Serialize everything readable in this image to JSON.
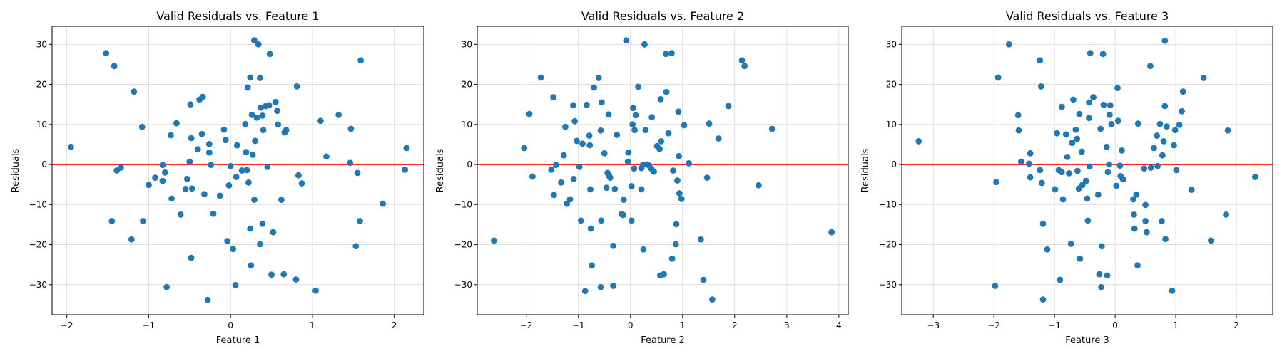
{
  "chart_data": [
    {
      "type": "scatter",
      "title": "Valid Residuals vs. Feature 1",
      "xlabel": "Feature 1",
      "ylabel": "Residuals",
      "xlim": [
        -2.18,
        2.36
      ],
      "ylim": [
        -37.5,
        34.5
      ],
      "xticks": [
        -2,
        -1,
        0,
        1,
        2
      ],
      "yticks": [
        -30,
        -20,
        -10,
        0,
        10,
        20,
        30
      ],
      "grid": true,
      "reference_line": {
        "y": 0,
        "color": "#ff0000"
      },
      "marker_color": "#1f77b4",
      "points": [
        [
          -1.95,
          4.4
        ],
        [
          -1.52,
          27.8
        ],
        [
          -1.42,
          24.6
        ],
        [
          -1.45,
          -14.1
        ],
        [
          -1.39,
          -1.5
        ],
        [
          -1.34,
          -0.8
        ],
        [
          -1.21,
          -18.7
        ],
        [
          -1.18,
          18.2
        ],
        [
          -1.08,
          9.4
        ],
        [
          -1.07,
          -14.1
        ],
        [
          -1.0,
          -5.1
        ],
        [
          -0.92,
          -3.3
        ],
        [
          -0.83,
          -0.1
        ],
        [
          -0.83,
          -4.1
        ],
        [
          -0.8,
          -2.0
        ],
        [
          -0.78,
          -30.6
        ],
        [
          -0.73,
          7.3
        ],
        [
          -0.72,
          -8.5
        ],
        [
          -0.66,
          10.3
        ],
        [
          -0.61,
          -12.5
        ],
        [
          -0.55,
          -6.1
        ],
        [
          -0.53,
          -3.6
        ],
        [
          -0.5,
          0.7
        ],
        [
          -0.49,
          15.0
        ],
        [
          -0.48,
          6.6
        ],
        [
          -0.48,
          -23.3
        ],
        [
          -0.47,
          -6.0
        ],
        [
          -0.4,
          3.8
        ],
        [
          -0.38,
          16.2
        ],
        [
          -0.35,
          7.6
        ],
        [
          -0.34,
          16.9
        ],
        [
          -0.32,
          -7.4
        ],
        [
          -0.28,
          -33.8
        ],
        [
          -0.26,
          5.1
        ],
        [
          -0.26,
          3.0
        ],
        [
          -0.24,
          -0.1
        ],
        [
          -0.21,
          -12.3
        ],
        [
          -0.13,
          -7.8
        ],
        [
          -0.08,
          8.7
        ],
        [
          -0.06,
          6.1
        ],
        [
          -0.04,
          -19.1
        ],
        [
          -0.02,
          -5.2
        ],
        [
          0.0,
          -0.4
        ],
        [
          0.03,
          -21.1
        ],
        [
          0.06,
          -30.1
        ],
        [
          0.07,
          -3.1
        ],
        [
          0.08,
          4.8
        ],
        [
          0.14,
          -1.5
        ],
        [
          0.18,
          10.1
        ],
        [
          0.19,
          3.1
        ],
        [
          0.2,
          -1.4
        ],
        [
          0.21,
          19.2
        ],
        [
          0.22,
          -4.5
        ],
        [
          0.24,
          21.7
        ],
        [
          0.24,
          -16.0
        ],
        [
          0.25,
          -25.2
        ],
        [
          0.26,
          12.4
        ],
        [
          0.27,
          2.4
        ],
        [
          0.29,
          31.0
        ],
        [
          0.29,
          -8.8
        ],
        [
          0.3,
          5.9
        ],
        [
          0.32,
          11.7
        ],
        [
          0.34,
          30.0
        ],
        [
          0.36,
          21.6
        ],
        [
          0.36,
          -19.9
        ],
        [
          0.37,
          14.2
        ],
        [
          0.39,
          12.2
        ],
        [
          0.39,
          -14.8
        ],
        [
          0.4,
          8.6
        ],
        [
          0.43,
          14.6
        ],
        [
          0.45,
          -0.6
        ],
        [
          0.47,
          14.8
        ],
        [
          0.48,
          27.6
        ],
        [
          0.5,
          -27.5
        ],
        [
          0.52,
          -16.9
        ],
        [
          0.55,
          15.6
        ],
        [
          0.57,
          13.4
        ],
        [
          0.58,
          10.0
        ],
        [
          0.62,
          -8.8
        ],
        [
          0.65,
          -27.4
        ],
        [
          0.66,
          8.0
        ],
        [
          0.68,
          8.6
        ],
        [
          0.8,
          -28.7
        ],
        [
          0.81,
          19.5
        ],
        [
          0.83,
          -2.7
        ],
        [
          0.87,
          -4.7
        ],
        [
          1.04,
          -31.5
        ],
        [
          1.1,
          10.9
        ],
        [
          1.17,
          2.0
        ],
        [
          1.32,
          12.4
        ],
        [
          1.46,
          0.4
        ],
        [
          1.47,
          8.9
        ],
        [
          1.53,
          -20.4
        ],
        [
          1.55,
          -2.1
        ],
        [
          1.58,
          -14.1
        ],
        [
          1.59,
          26.0
        ],
        [
          1.86,
          -9.8
        ],
        [
          2.13,
          -1.3
        ],
        [
          2.15,
          4.1
        ]
      ]
    },
    {
      "type": "scatter",
      "title": "Valid Residuals vs. Feature 2",
      "xlabel": "Feature 2",
      "ylabel": "Residuals",
      "xlim": [
        -2.94,
        4.18
      ],
      "ylim": [
        -37.5,
        34.5
      ],
      "xticks": [
        -2,
        -1,
        0,
        1,
        2,
        3,
        4
      ],
      "yticks": [
        -30,
        -20,
        -10,
        0,
        10,
        20,
        30
      ],
      "grid": true,
      "reference_line": {
        "y": 0,
        "color": "#ff0000"
      },
      "marker_color": "#1f77b4",
      "points": [
        [
          -2.62,
          -19.0
        ],
        [
          -2.04,
          4.1
        ],
        [
          -1.94,
          12.6
        ],
        [
          -1.88,
          -3.0
        ],
        [
          -1.72,
          21.7
        ],
        [
          -1.52,
          -1.3
        ],
        [
          -1.48,
          16.8
        ],
        [
          -1.47,
          -7.6
        ],
        [
          -1.43,
          -0.1
        ],
        [
          -1.33,
          -4.5
        ],
        [
          -1.28,
          2.3
        ],
        [
          -1.25,
          9.4
        ],
        [
          -1.22,
          -9.8
        ],
        [
          -1.16,
          -8.7
        ],
        [
          -1.1,
          14.8
        ],
        [
          -1.09,
          -3.6
        ],
        [
          -1.07,
          10.8
        ],
        [
          -1.03,
          5.9
        ],
        [
          -0.98,
          -0.6
        ],
        [
          -0.95,
          -14.0
        ],
        [
          -0.92,
          5.2
        ],
        [
          -0.87,
          -31.6
        ],
        [
          -0.84,
          14.9
        ],
        [
          -0.79,
          7.2
        ],
        [
          -0.78,
          4.8
        ],
        [
          -0.77,
          -6.2
        ],
        [
          -0.76,
          -16.0
        ],
        [
          -0.74,
          -25.2
        ],
        [
          -0.7,
          19.2
        ],
        [
          -0.61,
          21.6
        ],
        [
          -0.57,
          -30.6
        ],
        [
          -0.57,
          8.5
        ],
        [
          -0.56,
          -14.0
        ],
        [
          -0.55,
          15.5
        ],
        [
          -0.5,
          2.8
        ],
        [
          -0.46,
          -5.8
        ],
        [
          -0.44,
          -2.1
        ],
        [
          -0.42,
          12.5
        ],
        [
          -0.41,
          -2.8
        ],
        [
          -0.39,
          -3.3
        ],
        [
          -0.33,
          -30.3
        ],
        [
          -0.33,
          -20.3
        ],
        [
          -0.3,
          -6.1
        ],
        [
          -0.26,
          7.4
        ],
        [
          -0.17,
          -12.4
        ],
        [
          -0.14,
          -12.6
        ],
        [
          -0.13,
          -8.8
        ],
        [
          -0.08,
          31.0
        ],
        [
          -0.05,
          0.7
        ],
        [
          -0.04,
          3.0
        ],
        [
          0.02,
          -5.4
        ],
        [
          0.02,
          -14.0
        ],
        [
          0.04,
          10.0
        ],
        [
          0.05,
          14.1
        ],
        [
          0.07,
          -1.0
        ],
        [
          0.08,
          8.6
        ],
        [
          0.1,
          12.3
        ],
        [
          0.15,
          19.4
        ],
        [
          0.21,
          -6.2
        ],
        [
          0.21,
          -0.9
        ],
        [
          0.24,
          -0.1
        ],
        [
          0.25,
          -21.2
        ],
        [
          0.27,
          30.0
        ],
        [
          0.29,
          8.6
        ],
        [
          0.31,
          0.0
        ],
        [
          0.35,
          -0.2
        ],
        [
          0.4,
          -1.0
        ],
        [
          0.41,
          11.8
        ],
        [
          0.45,
          -1.8
        ],
        [
          0.51,
          4.6
        ],
        [
          0.56,
          3.9
        ],
        [
          0.57,
          -27.7
        ],
        [
          0.58,
          16.3
        ],
        [
          0.59,
          5.8
        ],
        [
          0.64,
          -27.4
        ],
        [
          0.68,
          27.6
        ],
        [
          0.69,
          18.1
        ],
        [
          0.73,
          7.8
        ],
        [
          0.79,
          27.8
        ],
        [
          0.8,
          -23.5
        ],
        [
          0.82,
          -1.5
        ],
        [
          0.87,
          -19.9
        ],
        [
          0.88,
          -14.9
        ],
        [
          0.9,
          -4.0
        ],
        [
          0.92,
          13.2
        ],
        [
          0.93,
          2.1
        ],
        [
          0.94,
          -7.2
        ],
        [
          0.98,
          -8.6
        ],
        [
          1.03,
          9.8
        ],
        [
          1.12,
          0.3
        ],
        [
          1.35,
          -18.7
        ],
        [
          1.4,
          -28.8
        ],
        [
          1.47,
          -3.3
        ],
        [
          1.51,
          10.2
        ],
        [
          1.57,
          -33.7
        ],
        [
          1.69,
          6.5
        ],
        [
          1.88,
          14.6
        ],
        [
          2.14,
          26.0
        ],
        [
          2.19,
          24.6
        ],
        [
          2.46,
          -5.2
        ],
        [
          2.72,
          8.9
        ],
        [
          3.86,
          -16.9
        ]
      ]
    },
    {
      "type": "scatter",
      "title": "Valid Residuals vs. Feature 3",
      "xlabel": "Feature 3",
      "ylabel": "Residuals",
      "xlim": [
        -3.52,
        2.6
      ],
      "ylim": [
        -37.5,
        34.5
      ],
      "xticks": [
        -3,
        -2,
        -1,
        0,
        1,
        2
      ],
      "yticks": [
        -30,
        -20,
        -10,
        0,
        10,
        20,
        30
      ],
      "grid": true,
      "reference_line": {
        "y": 0,
        "color": "#ff0000"
      },
      "marker_color": "#1f77b4",
      "points": [
        [
          -3.24,
          5.8
        ],
        [
          -1.98,
          -30.3
        ],
        [
          -1.96,
          -4.4
        ],
        [
          -1.93,
          21.7
        ],
        [
          -1.75,
          30.0
        ],
        [
          -1.6,
          12.3
        ],
        [
          -1.59,
          8.5
        ],
        [
          -1.55,
          0.7
        ],
        [
          -1.42,
          0.2
        ],
        [
          -1.4,
          2.8
        ],
        [
          -1.4,
          -3.2
        ],
        [
          -1.24,
          -1.4
        ],
        [
          -1.24,
          26.0
        ],
        [
          -1.22,
          19.5
        ],
        [
          -1.21,
          -4.6
        ],
        [
          -1.19,
          -14.8
        ],
        [
          -1.19,
          -33.7
        ],
        [
          -1.12,
          -21.2
        ],
        [
          -0.99,
          -6.2
        ],
        [
          -0.96,
          7.8
        ],
        [
          -0.93,
          -1.4
        ],
        [
          -0.91,
          -28.8
        ],
        [
          -0.88,
          -1.9
        ],
        [
          -0.88,
          14.4
        ],
        [
          -0.86,
          -8.7
        ],
        [
          -0.81,
          7.5
        ],
        [
          -0.79,
          1.9
        ],
        [
          -0.76,
          -2.2
        ],
        [
          -0.73,
          -19.8
        ],
        [
          -0.71,
          5.4
        ],
        [
          -0.69,
          16.2
        ],
        [
          -0.65,
          8.7
        ],
        [
          -0.63,
          6.4
        ],
        [
          -0.62,
          -1.6
        ],
        [
          -0.6,
          -6.0
        ],
        [
          -0.59,
          12.6
        ],
        [
          -0.58,
          -23.5
        ],
        [
          -0.55,
          3.2
        ],
        [
          -0.54,
          -5.1
        ],
        [
          -0.48,
          -4.1
        ],
        [
          -0.46,
          -8.5
        ],
        [
          -0.45,
          -14.0
        ],
        [
          -0.43,
          11.6
        ],
        [
          -0.43,
          15.5
        ],
        [
          -0.42,
          -0.5
        ],
        [
          -0.41,
          27.8
        ],
        [
          -0.36,
          16.8
        ],
        [
          -0.28,
          -7.5
        ],
        [
          -0.26,
          -27.4
        ],
        [
          -0.24,
          8.9
        ],
        [
          -0.23,
          -30.6
        ],
        [
          -0.22,
          -20.4
        ],
        [
          -0.2,
          27.6
        ],
        [
          -0.19,
          14.9
        ],
        [
          -0.14,
          4.4
        ],
        [
          -0.13,
          -27.7
        ],
        [
          -0.12,
          -1.9
        ],
        [
          -0.1,
          0.0
        ],
        [
          -0.09,
          12.4
        ],
        [
          -0.08,
          14.8
        ],
        [
          -0.06,
          10.1
        ],
        [
          0.02,
          -5.3
        ],
        [
          0.04,
          19.1
        ],
        [
          0.05,
          10.9
        ],
        [
          0.08,
          -0.3
        ],
        [
          0.09,
          -2.9
        ],
        [
          0.11,
          3.5
        ],
        [
          0.13,
          -3.7
        ],
        [
          0.3,
          -8.7
        ],
        [
          0.31,
          -12.5
        ],
        [
          0.32,
          -16.0
        ],
        [
          0.35,
          -7.5
        ],
        [
          0.37,
          -25.2
        ],
        [
          0.38,
          10.2
        ],
        [
          0.48,
          -1.0
        ],
        [
          0.5,
          -14.1
        ],
        [
          0.5,
          -10.1
        ],
        [
          0.52,
          -16.9
        ],
        [
          0.58,
          24.6
        ],
        [
          0.59,
          -0.8
        ],
        [
          0.64,
          4.1
        ],
        [
          0.69,
          7.2
        ],
        [
          0.7,
          -0.4
        ],
        [
          0.74,
          10.1
        ],
        [
          0.77,
          -14.1
        ],
        [
          0.78,
          2.3
        ],
        [
          0.8,
          5.8
        ],
        [
          0.82,
          14.6
        ],
        [
          0.82,
          30.9
        ],
        [
          0.83,
          -18.6
        ],
        [
          0.85,
          9.5
        ],
        [
          0.94,
          -31.5
        ],
        [
          0.97,
          4.8
        ],
        [
          0.99,
          8.6
        ],
        [
          1.01,
          -1.4
        ],
        [
          1.06,
          9.9
        ],
        [
          1.1,
          13.3
        ],
        [
          1.12,
          18.2
        ],
        [
          1.26,
          -6.3
        ],
        [
          1.46,
          21.6
        ],
        [
          1.58,
          -19.0
        ],
        [
          1.83,
          -12.5
        ],
        [
          1.86,
          8.5
        ],
        [
          2.31,
          -3.1
        ]
      ]
    }
  ]
}
